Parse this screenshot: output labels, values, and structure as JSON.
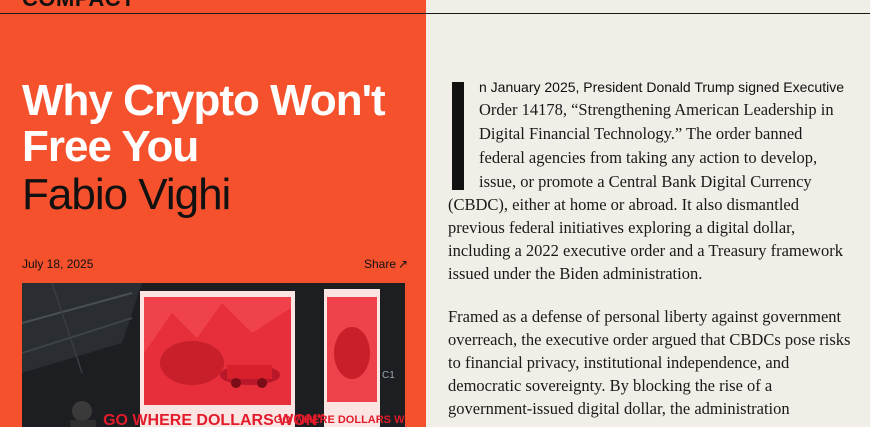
{
  "brand": {
    "logo_text": "COMPACT"
  },
  "article": {
    "title": "Why Crypto Won't Free You",
    "author": "Fabio Vighi",
    "date": "July 18, 2025",
    "share_label": "Share",
    "share_icon": "arrow-up-right-icon",
    "hero_image": {
      "sign_text_left": "GO WHERE DOLLARS WON'T",
      "sign_text_right": "GO WHERE DOLLARS WON'T"
    },
    "lead_line": "n January 2025, President Donald Trump signed Executive",
    "dropcap": "I",
    "paragraph1_lines": [
      "Order 14178, “Strengthening American Leadership in",
      "Digital Financial Technology.” The order banned",
      "federal agencies from taking any action to develop,",
      "issue, or promote a Central Bank Digital Currency",
      "(CBDC), either at home or abroad. It also dismantled",
      "previous federal initiatives exploring a digital dollar,",
      "including a 2022 executive order and a Treasury framework",
      "issued under the Biden administration."
    ],
    "paragraph2_lines": [
      "Framed as a defense of personal liberty against government",
      "overreach, the executive order argued that CBDCs pose risks",
      "to financial privacy, institutional independence, and",
      "democratic sovereignty. By blocking the rise of a",
      "government-issued digital dollar, the administration"
    ]
  },
  "colors": {
    "accent": "#f4512c",
    "page_bg": "#f1ede7",
    "text": "#111111"
  }
}
